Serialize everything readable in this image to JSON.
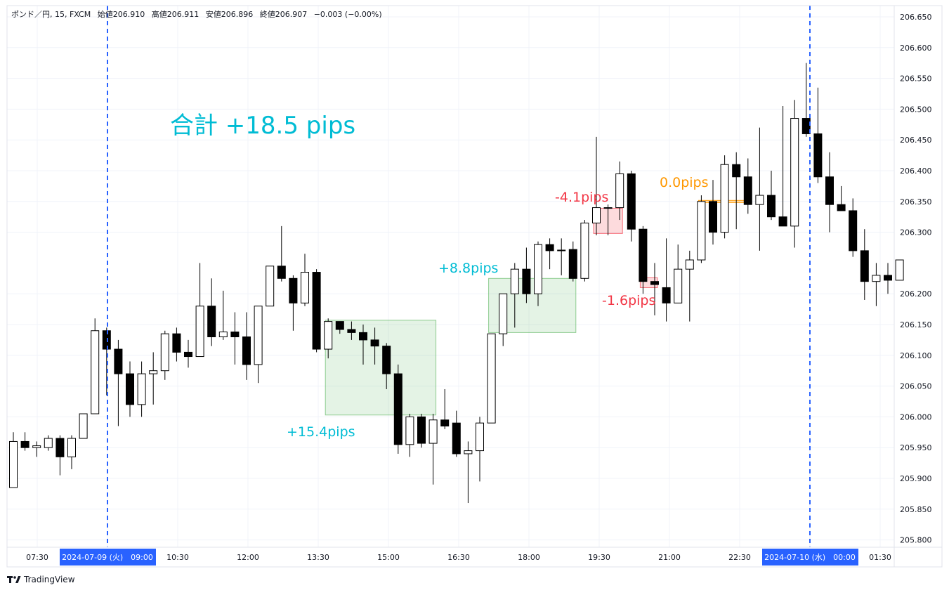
{
  "header": {
    "symbol": "ポンド／円, 15, FXCM",
    "open": "始値206.910",
    "high": "高値206.911",
    "low": "安値206.896",
    "close": "終値206.907",
    "change": "−0.003 (−0.00%)"
  },
  "brand": "TradingView",
  "colors": {
    "up_fill": "#ffffff",
    "down_fill": "#000000",
    "wick": "#000000",
    "win_box": "#4caf50",
    "loss_box": "#f23645",
    "blue_line": "#2962ff",
    "cyan_text": "#00bcd4",
    "red_text": "#f23645",
    "orange_text": "#ff9800"
  },
  "chart_data": {
    "type": "candlestick",
    "title": "",
    "ylim": [
      205.78,
      206.665
    ],
    "y_ticks": [
      "206.650",
      "206.600",
      "206.550",
      "206.500",
      "206.450",
      "206.400",
      "206.350",
      "206.300",
      "206.200",
      "206.150",
      "206.100",
      "206.050",
      "206.000",
      "205.950",
      "205.900",
      "205.850",
      "205.800"
    ],
    "x_ticks": [
      "07:30",
      "2024-07-09 (火)　09:00",
      "10:30",
      "12:00",
      "13:30",
      "15:00",
      "16:30",
      "18:00",
      "19:30",
      "21:00",
      "22:30",
      "2024-07-10 (水)　00:00",
      "01:30"
    ],
    "highlighted_x_ticks": [
      1,
      11
    ],
    "vertical_lines_at_x_tick": [
      1,
      11
    ],
    "total_label": "合計 +18.5 pips",
    "candles": [
      {
        "o": 205.885,
        "h": 205.975,
        "l": 205.885,
        "c": 205.96
      },
      {
        "o": 205.96,
        "h": 205.975,
        "l": 205.945,
        "c": 205.95
      },
      {
        "o": 205.95,
        "h": 205.96,
        "l": 205.935,
        "c": 205.953
      },
      {
        "o": 205.95,
        "h": 205.97,
        "l": 205.945,
        "c": 205.965
      },
      {
        "o": 205.965,
        "h": 205.97,
        "l": 205.905,
        "c": 205.935
      },
      {
        "o": 205.935,
        "h": 205.97,
        "l": 205.915,
        "c": 205.965
      },
      {
        "o": 205.965,
        "h": 206.005,
        "l": 205.965,
        "c": 206.005
      },
      {
        "o": 206.005,
        "h": 206.16,
        "l": 206.005,
        "c": 206.14
      },
      {
        "o": 206.14,
        "h": 206.145,
        "l": 206.035,
        "c": 206.11
      },
      {
        "o": 206.11,
        "h": 206.125,
        "l": 205.985,
        "c": 206.07
      },
      {
        "o": 206.07,
        "h": 206.09,
        "l": 206.0,
        "c": 206.02
      },
      {
        "o": 206.02,
        "h": 206.09,
        "l": 206.0,
        "c": 206.07
      },
      {
        "o": 206.07,
        "h": 206.105,
        "l": 206.02,
        "c": 206.075
      },
      {
        "o": 206.075,
        "h": 206.14,
        "l": 206.06,
        "c": 206.135
      },
      {
        "o": 206.135,
        "h": 206.145,
        "l": 206.09,
        "c": 206.105
      },
      {
        "o": 206.105,
        "h": 206.125,
        "l": 206.08,
        "c": 206.098
      },
      {
        "o": 206.098,
        "h": 206.25,
        "l": 206.098,
        "c": 206.18
      },
      {
        "o": 206.18,
        "h": 206.225,
        "l": 206.115,
        "c": 206.13
      },
      {
        "o": 206.13,
        "h": 206.205,
        "l": 206.125,
        "c": 206.138
      },
      {
        "o": 206.138,
        "h": 206.17,
        "l": 206.085,
        "c": 206.13
      },
      {
        "o": 206.13,
        "h": 206.17,
        "l": 206.06,
        "c": 206.085
      },
      {
        "o": 206.085,
        "h": 206.18,
        "l": 206.055,
        "c": 206.18
      },
      {
        "o": 206.18,
        "h": 206.245,
        "l": 206.18,
        "c": 206.245
      },
      {
        "o": 206.245,
        "h": 206.31,
        "l": 206.22,
        "c": 206.225
      },
      {
        "o": 206.225,
        "h": 206.23,
        "l": 206.14,
        "c": 206.185
      },
      {
        "o": 206.185,
        "h": 206.265,
        "l": 206.18,
        "c": 206.235
      },
      {
        "o": 206.235,
        "h": 206.24,
        "l": 206.105,
        "c": 206.11
      },
      {
        "o": 206.11,
        "h": 206.16,
        "l": 206.095,
        "c": 206.155
      },
      {
        "o": 206.155,
        "h": 206.155,
        "l": 206.135,
        "c": 206.142
      },
      {
        "o": 206.142,
        "h": 206.155,
        "l": 206.125,
        "c": 206.137
      },
      {
        "o": 206.137,
        "h": 206.15,
        "l": 206.085,
        "c": 206.125
      },
      {
        "o": 206.125,
        "h": 206.145,
        "l": 206.085,
        "c": 206.115
      },
      {
        "o": 206.115,
        "h": 206.12,
        "l": 206.045,
        "c": 206.07
      },
      {
        "o": 206.07,
        "h": 206.085,
        "l": 205.94,
        "c": 205.955
      },
      {
        "o": 205.955,
        "h": 206.005,
        "l": 205.935,
        "c": 206.0
      },
      {
        "o": 206.0,
        "h": 206.005,
        "l": 205.95,
        "c": 205.957
      },
      {
        "o": 205.957,
        "h": 206.005,
        "l": 205.89,
        "c": 205.995
      },
      {
        "o": 205.995,
        "h": 206.045,
        "l": 205.98,
        "c": 205.985
      },
      {
        "o": 205.99,
        "h": 206.01,
        "l": 205.935,
        "c": 205.94
      },
      {
        "o": 205.94,
        "h": 205.96,
        "l": 205.86,
        "c": 205.945
      },
      {
        "o": 205.945,
        "h": 206.0,
        "l": 205.895,
        "c": 205.99
      },
      {
        "o": 205.99,
        "h": 206.135,
        "l": 205.99,
        "c": 206.135
      },
      {
        "o": 206.135,
        "h": 206.2,
        "l": 206.115,
        "c": 206.2
      },
      {
        "o": 206.2,
        "h": 206.25,
        "l": 206.145,
        "c": 206.24
      },
      {
        "o": 206.24,
        "h": 206.275,
        "l": 206.185,
        "c": 206.2
      },
      {
        "o": 206.2,
        "h": 206.285,
        "l": 206.18,
        "c": 206.28
      },
      {
        "o": 206.28,
        "h": 206.29,
        "l": 206.24,
        "c": 206.27
      },
      {
        "o": 206.27,
        "h": 206.29,
        "l": 206.23,
        "c": 206.271
      },
      {
        "o": 206.272,
        "h": 206.285,
        "l": 206.22,
        "c": 206.225
      },
      {
        "o": 206.225,
        "h": 206.32,
        "l": 206.22,
        "c": 206.315
      },
      {
        "o": 206.315,
        "h": 206.455,
        "l": 206.295,
        "c": 206.34
      },
      {
        "o": 206.34,
        "h": 206.345,
        "l": 206.295,
        "c": 206.339
      },
      {
        "o": 206.34,
        "h": 206.415,
        "l": 206.32,
        "c": 206.395
      },
      {
        "o": 206.395,
        "h": 206.4,
        "l": 206.285,
        "c": 206.305
      },
      {
        "o": 206.305,
        "h": 206.31,
        "l": 206.2,
        "c": 206.22
      },
      {
        "o": 206.22,
        "h": 206.25,
        "l": 206.165,
        "c": 206.215
      },
      {
        "o": 206.21,
        "h": 206.29,
        "l": 206.155,
        "c": 206.185
      },
      {
        "o": 206.185,
        "h": 206.28,
        "l": 206.185,
        "c": 206.24
      },
      {
        "o": 206.24,
        "h": 206.27,
        "l": 206.155,
        "c": 206.255
      },
      {
        "o": 206.255,
        "h": 206.36,
        "l": 206.25,
        "c": 206.35
      },
      {
        "o": 206.35,
        "h": 206.385,
        "l": 206.28,
        "c": 206.3
      },
      {
        "o": 206.3,
        "h": 206.425,
        "l": 206.29,
        "c": 206.41
      },
      {
        "o": 206.41,
        "h": 206.43,
        "l": 206.305,
        "c": 206.39
      },
      {
        "o": 206.39,
        "h": 206.42,
        "l": 206.33,
        "c": 206.345
      },
      {
        "o": 206.345,
        "h": 206.47,
        "l": 206.27,
        "c": 206.36
      },
      {
        "o": 206.36,
        "h": 206.4,
        "l": 206.32,
        "c": 206.325
      },
      {
        "o": 206.325,
        "h": 206.505,
        "l": 206.315,
        "c": 206.31
      },
      {
        "o": 206.31,
        "h": 206.515,
        "l": 206.275,
        "c": 206.485
      },
      {
        "o": 206.485,
        "h": 206.575,
        "l": 206.455,
        "c": 206.46
      },
      {
        "o": 206.46,
        "h": 206.535,
        "l": 206.38,
        "c": 206.39
      },
      {
        "o": 206.39,
        "h": 206.43,
        "l": 206.3,
        "c": 206.345
      },
      {
        "o": 206.345,
        "h": 206.375,
        "l": 206.335,
        "c": 206.335
      },
      {
        "o": 206.335,
        "h": 206.355,
        "l": 206.26,
        "c": 206.27
      },
      {
        "o": 206.27,
        "h": 206.305,
        "l": 206.19,
        "c": 206.22
      },
      {
        "o": 206.22,
        "h": 206.25,
        "l": 206.18,
        "c": 206.23
      },
      {
        "o": 206.23,
        "h": 206.25,
        "l": 206.2,
        "c": 206.222
      },
      {
        "o": 206.222,
        "h": 206.255,
        "l": 206.222,
        "c": 206.255
      }
    ],
    "trades": [
      {
        "label": "+15.4pips",
        "kind": "win",
        "entry": 206.157,
        "exit": 206.003,
        "start_index": 27,
        "end_index": 36,
        "label_color": "cyan"
      },
      {
        "label": "+8.8pips",
        "kind": "win",
        "entry": 206.225,
        "exit": 206.137,
        "start_index": 41,
        "end_index": 48,
        "label_color": "cyan"
      },
      {
        "label": "-4.1pips",
        "kind": "loss",
        "entry": 206.339,
        "exit": 206.298,
        "start_index": 50,
        "end_index": 52,
        "label_color": "red"
      },
      {
        "label": "-1.6pips",
        "kind": "loss",
        "entry": 206.226,
        "exit": 206.21,
        "start_index": 54,
        "end_index": 55,
        "label_color": "red"
      },
      {
        "label": "0.0pips",
        "kind": "even",
        "entry": 206.35,
        "exit": 206.35,
        "start_index": 59,
        "end_index": 63,
        "label_color": "orange"
      }
    ]
  }
}
